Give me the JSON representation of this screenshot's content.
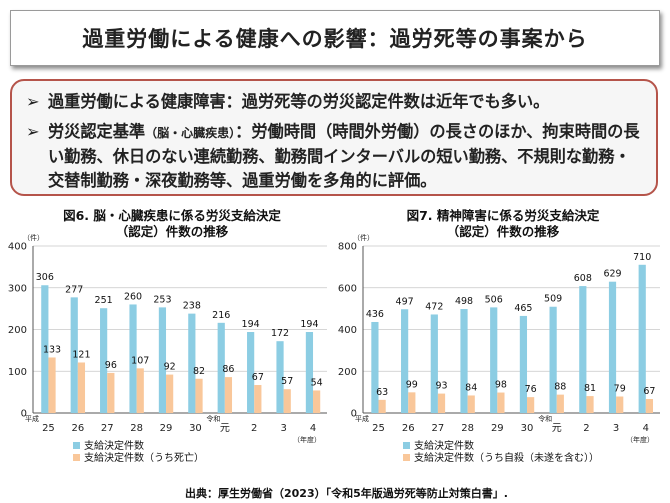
{
  "title": "過重労働による健康への影響：過労死等の事案から",
  "summary": {
    "bullet_mark": "➢",
    "bullet1": "過重労働による健康障害：過労死等の労災認定件数は近年でも多い。",
    "bullet2_head": "労災認定基準",
    "bullet2_small": "（脳・心臓疾患）",
    "bullet2_rest": "：労働時間（時間外労働）の長さのほか、拘束時間の長い勤務、休日のない連続勤務、勤務間インターバルの短い勤務、不規則な勤務・交替制勤務・深夜勤務等、過重労働を多角的に評価。"
  },
  "source": "出典：厚生労働省（2023）「令和5年版過労死等防止対策白書」.",
  "colors": {
    "series1": "#8ccde3",
    "series2": "#f9c79a",
    "grid": "#c8c8c8",
    "axis": "#555555"
  },
  "chart_data": [
    {
      "type": "bar",
      "title": "図6．脳・心臓疾患に係る労災支給決定（認定）件数の推移",
      "title_line1": "図6. 脳・心臓疾患に係る労災支給決定",
      "title_line2": "（認定）件数の推移",
      "unit": "（件）",
      "categories": [
        "25",
        "26",
        "27",
        "28",
        "29",
        "30",
        "元",
        "2",
        "3",
        "4"
      ],
      "era_labels": {
        "first": "平成",
        "reiwa": "令和"
      },
      "x_unit": "（年度）",
      "ylim": [
        0,
        400
      ],
      "yticks": [
        0,
        100,
        200,
        300,
        400
      ],
      "grid": true,
      "series": [
        {
          "name": "支給決定件数",
          "values": [
            306,
            277,
            251,
            260,
            253,
            238,
            216,
            194,
            172,
            194
          ]
        },
        {
          "name": "支給決定件数（うち死亡）",
          "values": [
            133,
            121,
            96,
            107,
            92,
            82,
            86,
            67,
            57,
            54
          ]
        }
      ]
    },
    {
      "type": "bar",
      "title": "図7．精神障害に係る労災支給決定（認定）件数の推移",
      "title_line1": "図7. 精神障害に係る労災支給決定",
      "title_line2": "（認定）件数の推移",
      "unit": "（件）",
      "categories": [
        "25",
        "26",
        "27",
        "28",
        "29",
        "30",
        "元",
        "2",
        "3",
        "4"
      ],
      "era_labels": {
        "first": "平成",
        "reiwa": "令和"
      },
      "x_unit": "（年度）",
      "ylim": [
        0,
        800
      ],
      "yticks": [
        0,
        200,
        400,
        600,
        800
      ],
      "grid": true,
      "series": [
        {
          "name": "支給決定件数",
          "values": [
            436,
            497,
            472,
            498,
            506,
            465,
            509,
            608,
            629,
            710
          ]
        },
        {
          "name": "支給決定件数（うち自殺（未遂を含む））",
          "values": [
            63,
            99,
            93,
            84,
            98,
            76,
            88,
            81,
            79,
            67
          ]
        }
      ]
    }
  ]
}
